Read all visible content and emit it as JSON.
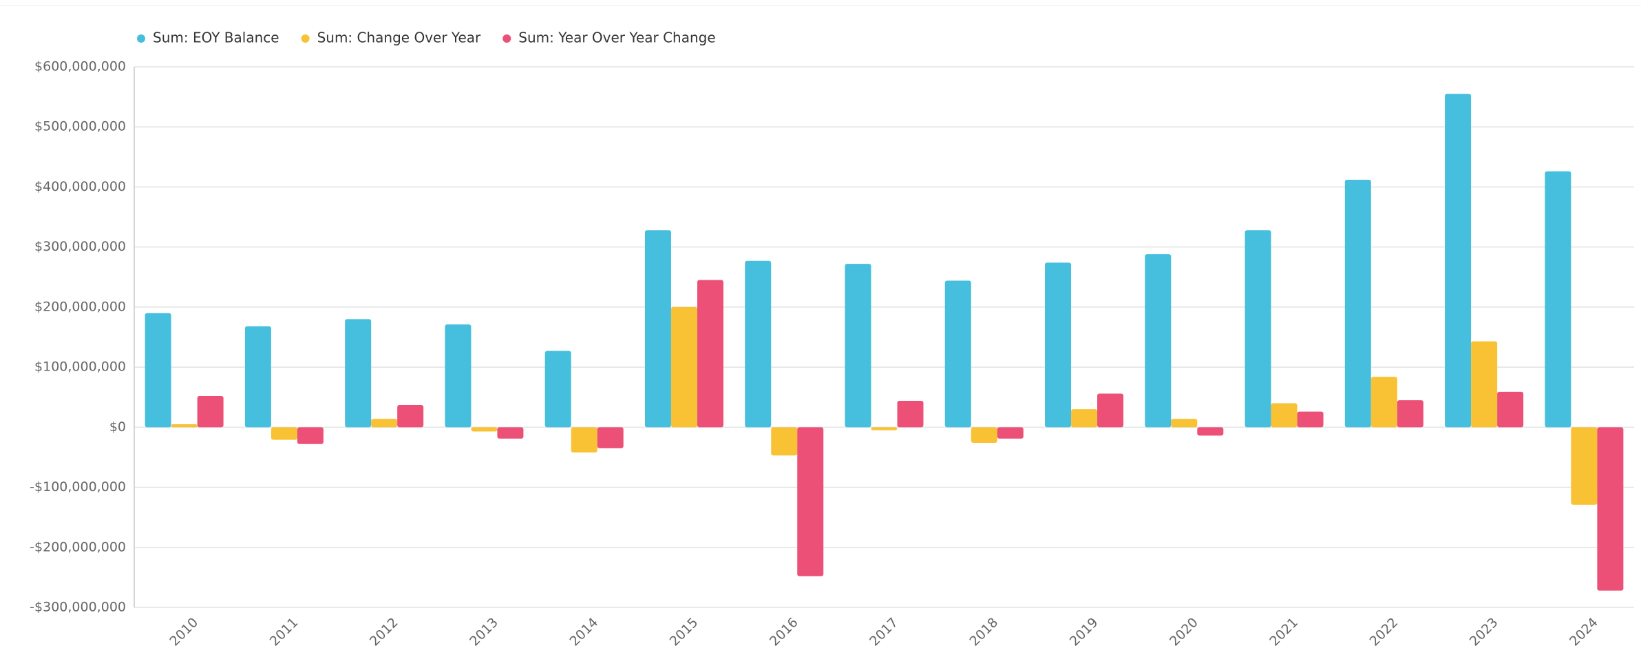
{
  "chart_data": {
    "type": "bar",
    "categories": [
      "2010",
      "2011",
      "2012",
      "2013",
      "2014",
      "2015",
      "2016",
      "2017",
      "2018",
      "2019",
      "2020",
      "2021",
      "2022",
      "2023",
      "2024"
    ],
    "series": [
      {
        "name": "Sum: EOY Balance",
        "color": "#45bfdd",
        "values": [
          190000000,
          168000000,
          180000000,
          171000000,
          127000000,
          328000000,
          277000000,
          272000000,
          244000000,
          274000000,
          288000000,
          328000000,
          412000000,
          555000000,
          426000000
        ]
      },
      {
        "name": "Sum: Change Over Year",
        "color": "#f9c235",
        "values": [
          5000000,
          -21000000,
          14000000,
          -7000000,
          -42000000,
          200000000,
          -47000000,
          -5000000,
          -26000000,
          30000000,
          14000000,
          40000000,
          84000000,
          143000000,
          -129000000
        ]
      },
      {
        "name": "Sum: Year Over Year Change",
        "color": "#ec5077",
        "values": [
          52000000,
          -28000000,
          37000000,
          -19000000,
          -35000000,
          245000000,
          -248000000,
          44000000,
          -19000000,
          56000000,
          -14000000,
          26000000,
          45000000,
          59000000,
          -272000000
        ]
      }
    ],
    "ylim": [
      -300000000,
      600000000
    ],
    "yticks": [
      {
        "value": -300000000,
        "label": "-$300,000,000"
      },
      {
        "value": -200000000,
        "label": "-$200,000,000"
      },
      {
        "value": -100000000,
        "label": "-$100,000,000"
      },
      {
        "value": 0,
        "label": "$0"
      },
      {
        "value": 100000000,
        "label": "$100,000,000"
      },
      {
        "value": 200000000,
        "label": "$200,000,000"
      },
      {
        "value": 300000000,
        "label": "$300,000,000"
      },
      {
        "value": 400000000,
        "label": "$400,000,000"
      },
      {
        "value": 500000000,
        "label": "$500,000,000"
      },
      {
        "value": 600000000,
        "label": "$600,000,000"
      }
    ],
    "grid": true,
    "legend": "top"
  }
}
